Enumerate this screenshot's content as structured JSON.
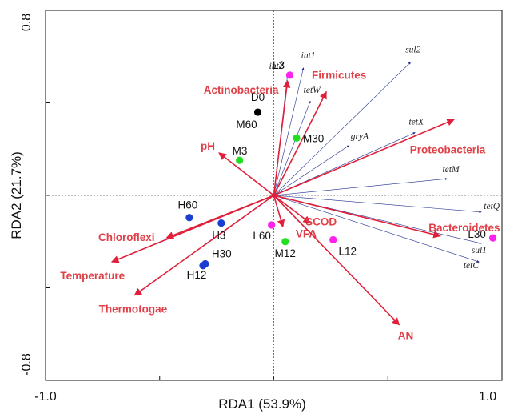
{
  "chart_data": {
    "type": "scatter",
    "title": "",
    "xlabel": "RDA1 (53.9%)",
    "ylabel": "RDA2 (21.7%)",
    "xlim": [
      -1.0,
      1.0
    ],
    "ylim": [
      -0.8,
      0.8
    ],
    "x_tick_labels": [
      "-1.0",
      "1.0"
    ],
    "y_tick_labels": [
      "0.8",
      "-0.8"
    ],
    "grid": false,
    "reference_lines": "dotted lines at x=0 and y=0",
    "colors": {
      "environmental_arrow": "#e0203a",
      "gene_arrow": "#1f2f8f",
      "D": "#000000",
      "M": "#22dd22",
      "H": "#1a3fd0",
      "L": "#ff22ee"
    },
    "environmental_vectors": [
      {
        "label": "Actinobacteria",
        "x": 0.06,
        "y": 0.62
      },
      {
        "label": "Firmicutes",
        "x": 0.23,
        "y": 0.56
      },
      {
        "label": "Proteobacteria",
        "x": 0.79,
        "y": 0.41
      },
      {
        "label": "pH",
        "x": -0.24,
        "y": 0.23
      },
      {
        "label": "Chloroflexi",
        "x": -0.47,
        "y": -0.23
      },
      {
        "label": "Temperature",
        "x": -0.71,
        "y": -0.36
      },
      {
        "label": "Thermotogae",
        "x": -0.61,
        "y": -0.54
      },
      {
        "label": "VFA",
        "x": 0.04,
        "y": -0.17
      },
      {
        "label": "SCOD",
        "x": 0.16,
        "y": -0.15
      },
      {
        "label": "Bacteroidetes",
        "x": 0.73,
        "y": -0.22
      },
      {
        "label": "AN",
        "x": 0.55,
        "y": -0.7
      }
    ],
    "gene_vectors": [
      {
        "label": "int2",
        "x": 0.06,
        "y": 0.65
      },
      {
        "label": "int1",
        "x": 0.13,
        "y": 0.69
      },
      {
        "label": "tetW",
        "x": 0.16,
        "y": 0.51
      },
      {
        "label": "sul2",
        "x": 0.6,
        "y": 0.72
      },
      {
        "label": "tetX",
        "x": 0.62,
        "y": 0.34
      },
      {
        "label": "gryA",
        "x": 0.33,
        "y": 0.27
      },
      {
        "label": "tetM",
        "x": 0.76,
        "y": 0.09
      },
      {
        "label": "tetQ",
        "x": 0.91,
        "y": -0.09
      },
      {
        "label": "sul1",
        "x": 0.91,
        "y": -0.26
      },
      {
        "label": "tetC",
        "x": 0.9,
        "y": -0.36
      }
    ],
    "samples": [
      {
        "label": "D0",
        "group": "D",
        "x": -0.07,
        "y": 0.45
      },
      {
        "label": "M60",
        "group": "M",
        "x": -0.07,
        "y": 0.45
      },
      {
        "label": "M30",
        "group": "M",
        "x": 0.1,
        "y": 0.31
      },
      {
        "label": "M3",
        "group": "M",
        "x": -0.15,
        "y": 0.19
      },
      {
        "label": "L3",
        "group": "L",
        "x": 0.07,
        "y": 0.65
      },
      {
        "label": "H60",
        "group": "H",
        "x": -0.37,
        "y": -0.12
      },
      {
        "label": "H3",
        "group": "H",
        "x": -0.23,
        "y": -0.15
      },
      {
        "label": "H30",
        "group": "H",
        "x": -0.3,
        "y": -0.37
      },
      {
        "label": "H12",
        "group": "H",
        "x": -0.31,
        "y": -0.38
      },
      {
        "label": "L60",
        "group": "L",
        "x": -0.01,
        "y": -0.16
      },
      {
        "label": "M12",
        "group": "M",
        "x": 0.05,
        "y": -0.25
      },
      {
        "label": "L12",
        "group": "L",
        "x": 0.26,
        "y": -0.24
      },
      {
        "label": "L30",
        "group": "L",
        "x": 0.96,
        "y": -0.23
      }
    ]
  }
}
